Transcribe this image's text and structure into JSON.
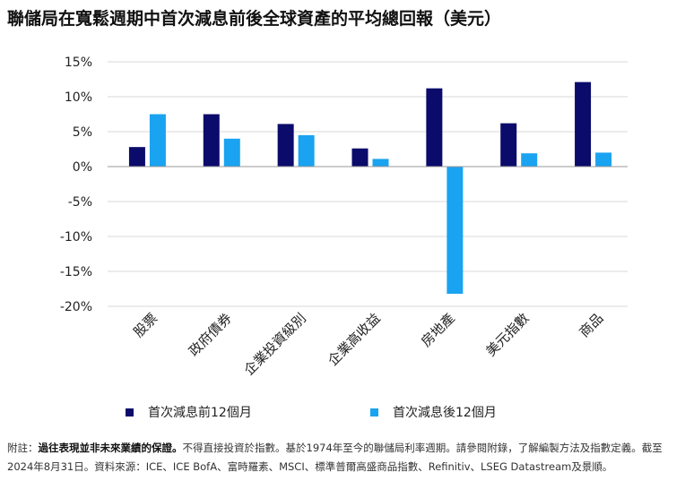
{
  "title": "聯儲局在寬鬆週期中首次減息前後全球資產的平均總回報（美元）",
  "colors": {
    "before": "#0b0b6b",
    "after": "#1aa3f0",
    "grid": "#d9d9d9",
    "axis": "#999999"
  },
  "chart_data": {
    "type": "bar",
    "categories": [
      "股票",
      "政府債券",
      "企業投資級別",
      "企業高收益",
      "房地產",
      "美元指數",
      "商品"
    ],
    "series": [
      {
        "name": "首次減息前12個月",
        "values": [
          2.8,
          7.5,
          6.1,
          2.6,
          11.2,
          6.2,
          12.1
        ]
      },
      {
        "name": "首次減息後12個月",
        "values": [
          7.5,
          4.0,
          4.5,
          1.1,
          -18.2,
          1.9,
          2.0
        ]
      }
    ],
    "yticks": [
      "15%",
      "10%",
      "5%",
      "0%",
      "-5%",
      "-10%",
      "-15%",
      "-20%"
    ],
    "ylim": [
      -20,
      15
    ],
    "grid": true,
    "legend_position": "bottom"
  },
  "note": {
    "prefix": "附註：",
    "bold": "過往表現並非未來業績的保證。",
    "rest": "不得直接投資於指數。基於1974年至今的聯儲局利率週期。請參閱附錄，了解編製方法及指數定義。截至2024年8月31日。資料來源：ICE、ICE BofA、富時羅素、MSCI、標準普爾高盛商品指數、Refinitiv、LSEG Datastream及景順。"
  }
}
